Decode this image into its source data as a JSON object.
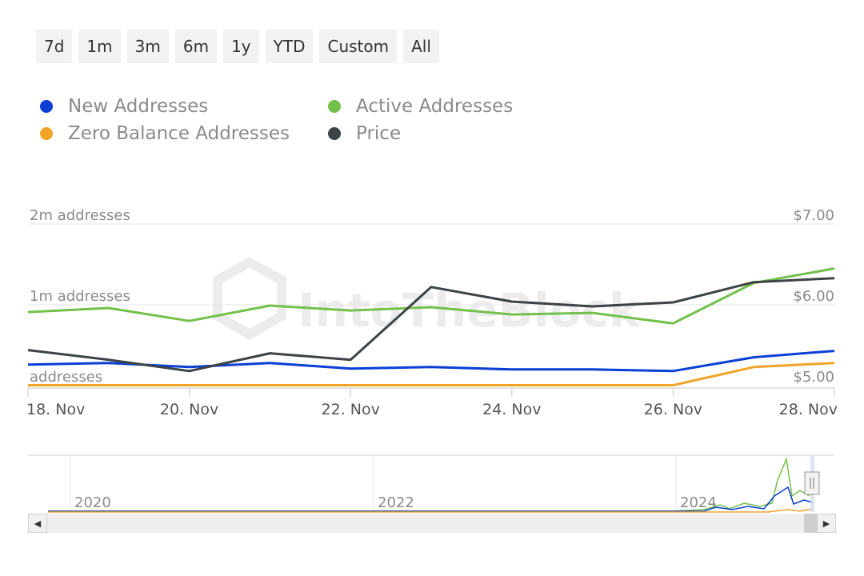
{
  "range_selector": {
    "buttons": [
      "7d",
      "1m",
      "3m",
      "6m",
      "1y",
      "YTD",
      "Custom",
      "All"
    ]
  },
  "legend": {
    "items": [
      {
        "label": "New Addresses",
        "color": "#0a3fd6"
      },
      {
        "label": "Active Addresses",
        "color": "#73c04a"
      },
      {
        "label": "Zero Balance Addresses",
        "color": "#f0a42a"
      },
      {
        "label": "Price",
        "color": "#3d4345"
      }
    ]
  },
  "watermark": "IntoTheBlock",
  "chart_data": {
    "type": "line",
    "x": [
      "18. Nov",
      "19. Nov",
      "20. Nov",
      "21. Nov",
      "22. Nov",
      "23. Nov",
      "24. Nov",
      "25. Nov",
      "26. Nov",
      "27. Nov",
      "28. Nov"
    ],
    "x_tick_labels": [
      "18. Nov",
      "20. Nov",
      "22. Nov",
      "24. Nov",
      "26. Nov",
      "28. Nov"
    ],
    "y_left": {
      "ticks": [
        "2m addresses",
        "1m addresses",
        "addresses"
      ],
      "range": [
        0,
        2000000
      ]
    },
    "y_right": {
      "ticks": [
        "$7.00",
        "$6.00",
        "$5.00"
      ],
      "range": [
        5,
        7
      ]
    },
    "grid": true,
    "legend_position": "top-left",
    "series": [
      {
        "name": "New Addresses",
        "axis": "left",
        "color": "#0a3fd6",
        "values": [
          260000,
          280000,
          230000,
          280000,
          210000,
          230000,
          200000,
          200000,
          180000,
          350000,
          430000
        ]
      },
      {
        "name": "Active Addresses",
        "axis": "left",
        "color": "#73c04a",
        "values": [
          910000,
          960000,
          800000,
          990000,
          930000,
          970000,
          880000,
          900000,
          770000,
          1270000,
          1450000
        ]
      },
      {
        "name": "Zero Balance Addresses",
        "axis": "left",
        "color": "#f0a42a",
        "values": [
          5000,
          5000,
          5000,
          5000,
          5000,
          5000,
          5000,
          5000,
          5000,
          230000,
          280000
        ]
      },
      {
        "name": "Price",
        "axis": "right",
        "color": "#3d4345",
        "values": [
          5.44,
          5.32,
          5.18,
          5.4,
          5.32,
          6.22,
          6.04,
          5.98,
          6.03,
          6.28,
          6.33
        ]
      }
    ],
    "navigator": {
      "x_labels": [
        "2020",
        "2022",
        "2024"
      ]
    }
  }
}
